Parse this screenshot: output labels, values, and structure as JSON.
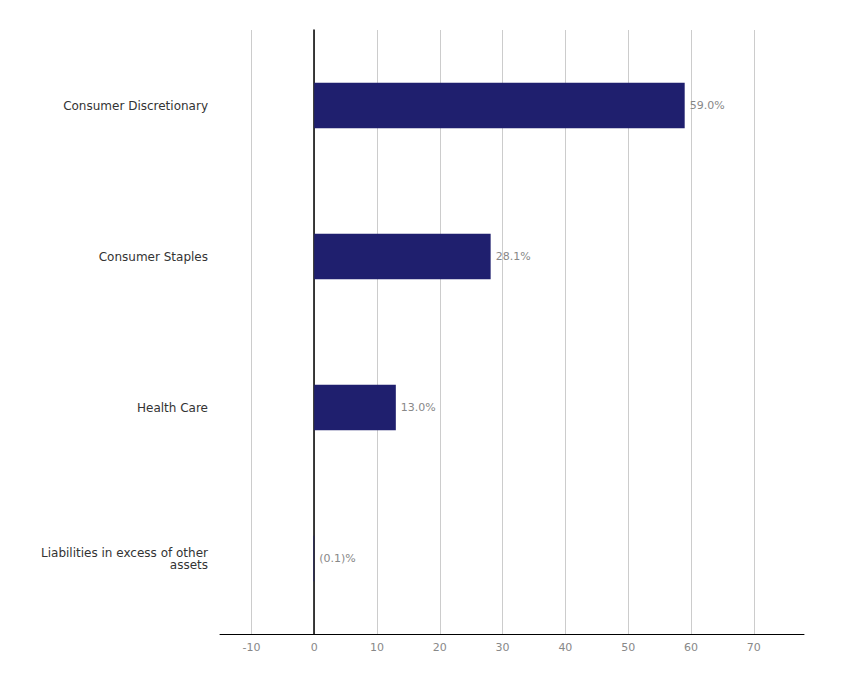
{
  "chart_data": {
    "type": "bar",
    "orientation": "horizontal",
    "categories": [
      "Consumer Discretionary",
      "Consumer Staples",
      "Health Care",
      "Liabilities in excess of other\nassets"
    ],
    "values": [
      59.0,
      28.1,
      13.0,
      -0.1
    ],
    "value_labels": [
      "59.0%",
      "28.1%",
      "13.0%",
      "(0.1)%"
    ],
    "data_labels": true,
    "color": "#1f1f6e",
    "xlim": [
      -15,
      78
    ],
    "xticks": [
      -10,
      0,
      10,
      20,
      30,
      40,
      50,
      60,
      70
    ],
    "grid": true
  }
}
